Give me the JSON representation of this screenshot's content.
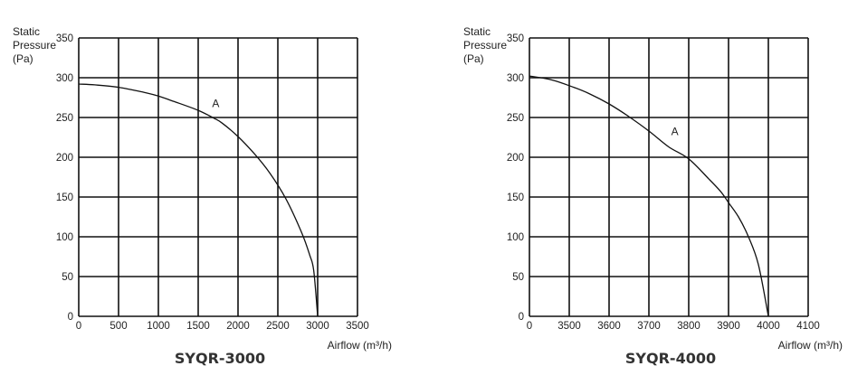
{
  "chart_data": [
    {
      "type": "line",
      "title": "SYQR-3000",
      "xlabel": "Airflow (m³/h)",
      "ylabel_lines": [
        "Static",
        "Pressure",
        "(Pa)"
      ],
      "x_ticks": [
        "0",
        "500",
        "1000",
        "1500",
        "2000",
        "2500",
        "3000",
        "3500"
      ],
      "y_ticks": [
        "0",
        "50",
        "100",
        "150",
        "200",
        "250",
        "300",
        "350"
      ],
      "xlim": [
        0,
        3500
      ],
      "ylim": [
        0,
        350
      ],
      "grid": true,
      "series": [
        {
          "label": "A",
          "x": [
            0,
            200,
            500,
            800,
            1000,
            1200,
            1500,
            1700,
            1800,
            2000,
            2200,
            2400,
            2600,
            2800,
            2900,
            2950,
            3000
          ],
          "y": [
            292,
            291,
            288,
            282,
            277,
            270,
            259,
            249,
            243,
            226,
            205,
            180,
            148,
            105,
            77,
            58,
            0
          ]
        }
      ],
      "label_at": [
        1720,
        263
      ]
    },
    {
      "type": "line",
      "title": "SYQR-4000",
      "xlabel": "Airflow (m³/h)",
      "ylabel_lines": [
        "Static",
        "Pressure",
        "(Pa)"
      ],
      "x_ticks": [
        "0",
        "3500",
        "3600",
        "3700",
        "3800",
        "3900",
        "4000",
        "4100"
      ],
      "y_ticks": [
        "0",
        "50",
        "100",
        "150",
        "200",
        "250",
        "300",
        "350"
      ],
      "x_tick_values": [
        3400,
        3500,
        3600,
        3700,
        3800,
        3900,
        4000,
        4100
      ],
      "xlim": [
        3400,
        4100
      ],
      "ylim": [
        0,
        350
      ],
      "grid": true,
      "series": [
        {
          "label": "A",
          "x": [
            3400,
            3450,
            3500,
            3550,
            3600,
            3650,
            3700,
            3750,
            3800,
            3850,
            3880,
            3900,
            3925,
            3950,
            3975,
            4000
          ],
          "y": [
            302,
            298,
            290,
            280,
            267,
            251,
            233,
            213,
            198,
            173,
            157,
            143,
            125,
            100,
            65,
            0
          ]
        }
      ],
      "label_at": [
        3765,
        228
      ]
    }
  ]
}
